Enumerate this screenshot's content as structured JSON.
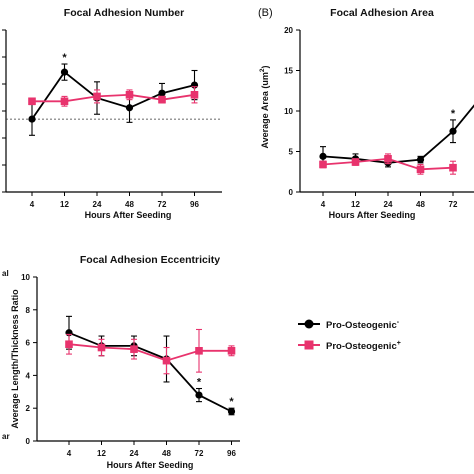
{
  "legend": {
    "series1": "Pro-Osteogenic",
    "series1_sup": "-",
    "series2": "Pro-Osteogenic",
    "series2_sup": "+"
  },
  "chart_data": [
    {
      "type": "line",
      "title": "Focal Adhesion Number",
      "xlabel": "Hours After Seeding",
      "categories": [
        "4",
        "12",
        "24",
        "48",
        "72",
        "96"
      ],
      "ylim": [
        0,
        1
      ],
      "series": [
        {
          "name": "Pro-Osteogenic-",
          "color": "#000000",
          "marker": "circle",
          "values": [
            0.45,
            0.74,
            0.58,
            0.52,
            0.61,
            0.66
          ],
          "errors": [
            0.1,
            0.05,
            0.1,
            0.09,
            0.06,
            0.09
          ]
        },
        {
          "name": "Pro-Osteogenic+",
          "color": "#e8336d",
          "marker": "square",
          "values": [
            0.56,
            0.56,
            0.59,
            0.6,
            0.57,
            0.6
          ],
          "errors": [
            0.02,
            0.03,
            0.04,
            0.03,
            0.02,
            0.05
          ]
        }
      ],
      "annotations": [
        {
          "category": "12",
          "text": "*"
        }
      ],
      "reference_line": 0.45
    },
    {
      "type": "line",
      "panel_label": "(B)",
      "title": "Focal Adhesion Area",
      "xlabel": "Hours After Seeding",
      "ylabel": "Average Area (um",
      "ylabel_sup": "2",
      "ylabel_end": ")",
      "categories": [
        "4",
        "12",
        "24",
        "48",
        "72"
      ],
      "ylim": [
        0,
        20
      ],
      "yticks": [
        "0",
        "5",
        "10",
        "15",
        "20"
      ],
      "series": [
        {
          "name": "Pro-Osteogenic-",
          "color": "#000000",
          "marker": "circle",
          "values": [
            4.4,
            4.1,
            3.6,
            4.0,
            7.5
          ],
          "errors": [
            1.2,
            0.6,
            0.5,
            0.4,
            1.4
          ],
          "continues_to": 10.8
        },
        {
          "name": "Pro-Osteogenic+",
          "color": "#e8336d",
          "marker": "square",
          "values": [
            3.4,
            3.7,
            4.1,
            2.8,
            3.0
          ],
          "errors": [
            0.4,
            0.4,
            0.6,
            0.6,
            0.8
          ]
        }
      ],
      "annotations": [
        {
          "category": "72",
          "text": "*"
        }
      ]
    },
    {
      "type": "line",
      "title": "Focal Adhesion Eccentricity",
      "xlabel": "Hours After Seeding",
      "ylabel": "Average Length/Thickness Ratio",
      "categories": [
        "4",
        "12",
        "24",
        "48",
        "72",
        "96"
      ],
      "ylim": [
        0,
        10
      ],
      "yticks": [
        "0",
        "2",
        "4",
        "6",
        "8",
        "10"
      ],
      "left_labels": [
        "al",
        "ar"
      ],
      "series": [
        {
          "name": "Pro-Osteogenic-",
          "color": "#000000",
          "marker": "circle",
          "values": [
            6.6,
            5.8,
            5.8,
            5.0,
            2.8,
            1.8
          ],
          "errors": [
            1.0,
            0.6,
            0.6,
            1.4,
            0.4,
            0.2
          ]
        },
        {
          "name": "Pro-Osteogenic+",
          "color": "#e8336d",
          "marker": "square",
          "values": [
            5.9,
            5.7,
            5.6,
            4.9,
            5.5,
            5.5
          ],
          "errors": [
            0.6,
            0.5,
            0.6,
            0.8,
            1.3,
            0.3
          ]
        }
      ],
      "annotations": [
        {
          "category": "72",
          "text": "*"
        },
        {
          "category": "96",
          "text": "*"
        }
      ]
    }
  ]
}
